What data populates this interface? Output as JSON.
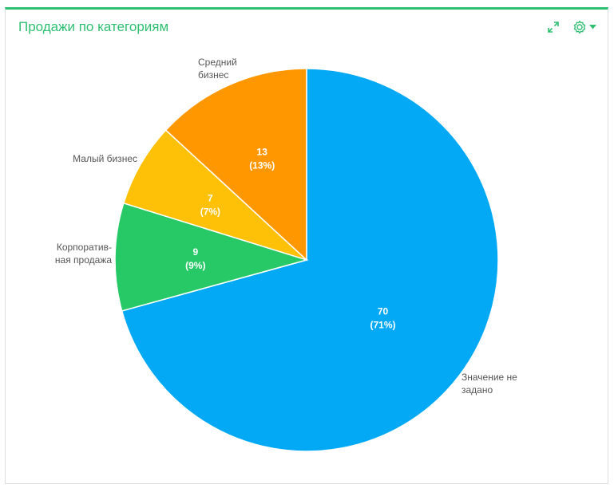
{
  "widget": {
    "title": "Продажи по категориям",
    "accent_color": "#2fbf71",
    "toolbar": {
      "expand_icon": "expand-icon",
      "settings_icon": "gear-icon",
      "dropdown_icon": "caret-down-icon"
    }
  },
  "chart_data": {
    "type": "pie",
    "title": "Продажи по категориям",
    "start_angle_deg": 0,
    "direction": "clockwise",
    "slices": [
      {
        "label_lines": [
          "Значение не",
          "задано"
        ],
        "value": 70,
        "percent": "71%",
        "color": "#03a9f4"
      },
      {
        "label_lines": [
          "Корпоратив-",
          "ная продажа"
        ],
        "value": 9,
        "percent": "9%",
        "color": "#26c965"
      },
      {
        "label_lines": [
          "Малый бизнес"
        ],
        "value": 7,
        "percent": "7%",
        "color": "#ffc107"
      },
      {
        "label_lines": [
          "Средний",
          "бизнес"
        ],
        "value": 13,
        "percent": "13%",
        "color": "#ff9800"
      }
    ]
  }
}
